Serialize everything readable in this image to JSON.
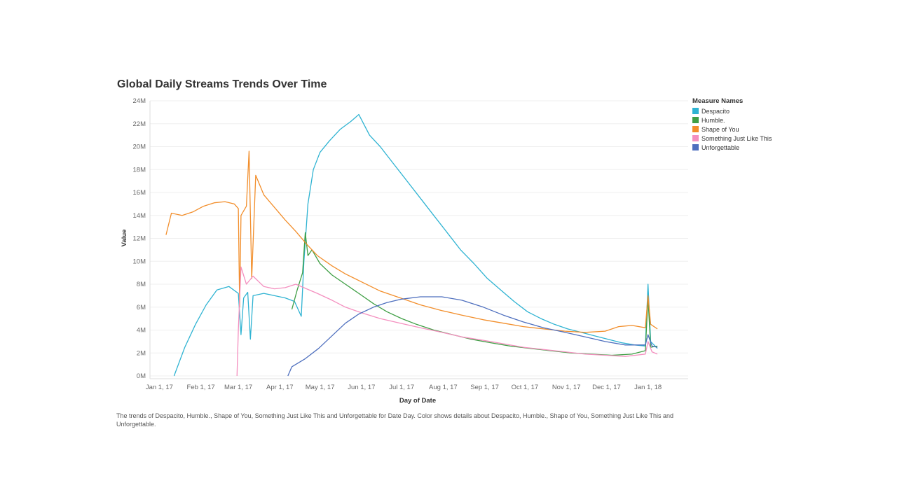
{
  "chart_data": {
    "type": "line",
    "title": "Global Daily Streams Trends Over Time",
    "xlabel": "Day of Date",
    "ylabel": "Value",
    "x_ticks": [
      "Jan 1, 17",
      "Feb 1, 17",
      "Mar 1, 17",
      "Apr 1, 17",
      "May 1, 17",
      "Jun 1, 17",
      "Jul 1, 17",
      "Aug 1, 17",
      "Sep 1, 17",
      "Oct 1, 17",
      "Nov 1, 17",
      "Dec 1, 17",
      "Jan 1, 18"
    ],
    "y_ticks": [
      "0M",
      "2M",
      "4M",
      "6M",
      "8M",
      "10M",
      "12M",
      "14M",
      "16M",
      "18M",
      "20M",
      "22M",
      "24M"
    ],
    "ylim": [
      0,
      24
    ],
    "xlim": [
      "2016-12-25",
      "2018-01-31"
    ],
    "legend_title": "Measure Names",
    "legend_position": "top-right",
    "grid": true,
    "series": [
      {
        "name": "Despacito",
        "color": "#2fb3d2",
        "points": [
          [
            "2017-01-12",
            0
          ],
          [
            "2017-01-20",
            2.5
          ],
          [
            "2017-01-28",
            4.5
          ],
          [
            "2017-02-05",
            6.2
          ],
          [
            "2017-02-13",
            7.5
          ],
          [
            "2017-02-22",
            7.8
          ],
          [
            "2017-03-01",
            7.2
          ],
          [
            "2017-03-03",
            3.6
          ],
          [
            "2017-03-05",
            6.8
          ],
          [
            "2017-03-08",
            7.3
          ],
          [
            "2017-03-10",
            3.2
          ],
          [
            "2017-03-12",
            7.0
          ],
          [
            "2017-03-20",
            7.2
          ],
          [
            "2017-03-28",
            7.0
          ],
          [
            "2017-04-05",
            6.8
          ],
          [
            "2017-04-12",
            6.5
          ],
          [
            "2017-04-17",
            5.2
          ],
          [
            "2017-04-19",
            10
          ],
          [
            "2017-04-22",
            15
          ],
          [
            "2017-04-26",
            18
          ],
          [
            "2017-05-01",
            19.5
          ],
          [
            "2017-05-08",
            20.5
          ],
          [
            "2017-05-16",
            21.5
          ],
          [
            "2017-05-24",
            22.2
          ],
          [
            "2017-05-30",
            22.8
          ],
          [
            "2017-06-07",
            21
          ],
          [
            "2017-06-15",
            20
          ],
          [
            "2017-06-25",
            18.5
          ],
          [
            "2017-07-05",
            17
          ],
          [
            "2017-07-15",
            15.5
          ],
          [
            "2017-07-25",
            14
          ],
          [
            "2017-08-04",
            12.5
          ],
          [
            "2017-08-14",
            11
          ],
          [
            "2017-08-24",
            9.8
          ],
          [
            "2017-09-03",
            8.5
          ],
          [
            "2017-09-13",
            7.5
          ],
          [
            "2017-09-23",
            6.5
          ],
          [
            "2017-10-03",
            5.6
          ],
          [
            "2017-10-13",
            5.0
          ],
          [
            "2017-10-23",
            4.5
          ],
          [
            "2017-11-02",
            4.1
          ],
          [
            "2017-11-12",
            3.8
          ],
          [
            "2017-11-22",
            3.5
          ],
          [
            "2017-12-02",
            3.2
          ],
          [
            "2017-12-12",
            2.9
          ],
          [
            "2017-12-22",
            2.7
          ],
          [
            "2017-12-30",
            2.6
          ],
          [
            "2018-01-01",
            8.0
          ],
          [
            "2018-01-03",
            3.0
          ],
          [
            "2018-01-08",
            2.4
          ]
        ]
      },
      {
        "name": "Humble.",
        "color": "#3f9f45",
        "points": [
          [
            "2017-04-10",
            5.8
          ],
          [
            "2017-04-14",
            7.5
          ],
          [
            "2017-04-18",
            9
          ],
          [
            "2017-04-20",
            12.5
          ],
          [
            "2017-04-22",
            10.5
          ],
          [
            "2017-04-25",
            11
          ],
          [
            "2017-05-01",
            9.8
          ],
          [
            "2017-05-10",
            8.8
          ],
          [
            "2017-05-20",
            8.0
          ],
          [
            "2017-05-30",
            7.2
          ],
          [
            "2017-06-10",
            6.3
          ],
          [
            "2017-06-20",
            5.6
          ],
          [
            "2017-07-01",
            5.0
          ],
          [
            "2017-07-12",
            4.5
          ],
          [
            "2017-07-25",
            4.0
          ],
          [
            "2017-08-08",
            3.6
          ],
          [
            "2017-08-22",
            3.2
          ],
          [
            "2017-09-05",
            2.9
          ],
          [
            "2017-09-20",
            2.6
          ],
          [
            "2017-10-05",
            2.4
          ],
          [
            "2017-10-20",
            2.2
          ],
          [
            "2017-11-05",
            2.0
          ],
          [
            "2017-11-20",
            1.9
          ],
          [
            "2017-12-05",
            1.8
          ],
          [
            "2017-12-20",
            1.9
          ],
          [
            "2017-12-30",
            2.2
          ],
          [
            "2018-01-01",
            6.8
          ],
          [
            "2018-01-03",
            2.5
          ],
          [
            "2018-01-08",
            2.6
          ]
        ]
      },
      {
        "name": "Shape of You",
        "color": "#f28e2b",
        "points": [
          [
            "2017-01-06",
            12.3
          ],
          [
            "2017-01-10",
            14.2
          ],
          [
            "2017-01-18",
            14.0
          ],
          [
            "2017-01-26",
            14.3
          ],
          [
            "2017-02-03",
            14.8
          ],
          [
            "2017-02-11",
            15.1
          ],
          [
            "2017-02-19",
            15.2
          ],
          [
            "2017-02-26",
            15.0
          ],
          [
            "2017-03-01",
            14.6
          ],
          [
            "2017-03-02",
            6.0
          ],
          [
            "2017-03-03",
            14.0
          ],
          [
            "2017-03-07",
            14.8
          ],
          [
            "2017-03-09",
            19.6
          ],
          [
            "2017-03-11",
            8.5
          ],
          [
            "2017-03-14",
            17.5
          ],
          [
            "2017-03-20",
            15.8
          ],
          [
            "2017-03-28",
            14.7
          ],
          [
            "2017-04-05",
            13.6
          ],
          [
            "2017-04-13",
            12.6
          ],
          [
            "2017-04-21",
            11.5
          ],
          [
            "2017-04-29",
            10.5
          ],
          [
            "2017-05-10",
            9.6
          ],
          [
            "2017-05-20",
            8.9
          ],
          [
            "2017-06-01",
            8.2
          ],
          [
            "2017-06-15",
            7.4
          ],
          [
            "2017-06-30",
            6.8
          ],
          [
            "2017-07-15",
            6.2
          ],
          [
            "2017-07-31",
            5.7
          ],
          [
            "2017-08-15",
            5.3
          ],
          [
            "2017-08-31",
            4.9
          ],
          [
            "2017-09-15",
            4.6
          ],
          [
            "2017-09-30",
            4.3
          ],
          [
            "2017-10-15",
            4.1
          ],
          [
            "2017-10-31",
            3.9
          ],
          [
            "2017-11-15",
            3.8
          ],
          [
            "2017-11-30",
            3.9
          ],
          [
            "2017-12-10",
            4.3
          ],
          [
            "2017-12-20",
            4.4
          ],
          [
            "2017-12-30",
            4.2
          ],
          [
            "2018-01-01",
            7.0
          ],
          [
            "2018-01-03",
            4.5
          ],
          [
            "2018-01-08",
            4.1
          ]
        ]
      },
      {
        "name": "Something Just Like This",
        "color": "#f48fbf",
        "points": [
          [
            "2017-02-28",
            0
          ],
          [
            "2017-03-01",
            4.0
          ],
          [
            "2017-03-03",
            9.5
          ],
          [
            "2017-03-07",
            8.0
          ],
          [
            "2017-03-12",
            8.7
          ],
          [
            "2017-03-20",
            7.8
          ],
          [
            "2017-03-28",
            7.6
          ],
          [
            "2017-04-05",
            7.7
          ],
          [
            "2017-04-13",
            8.0
          ],
          [
            "2017-04-21",
            7.6
          ],
          [
            "2017-04-29",
            7.2
          ],
          [
            "2017-05-10",
            6.6
          ],
          [
            "2017-05-20",
            6.0
          ],
          [
            "2017-06-01",
            5.5
          ],
          [
            "2017-06-15",
            5.0
          ],
          [
            "2017-06-30",
            4.6
          ],
          [
            "2017-07-15",
            4.2
          ],
          [
            "2017-07-31",
            3.8
          ],
          [
            "2017-08-15",
            3.4
          ],
          [
            "2017-08-31",
            3.1
          ],
          [
            "2017-09-15",
            2.8
          ],
          [
            "2017-09-30",
            2.5
          ],
          [
            "2017-10-15",
            2.3
          ],
          [
            "2017-10-31",
            2.1
          ],
          [
            "2017-11-15",
            1.9
          ],
          [
            "2017-11-30",
            1.8
          ],
          [
            "2017-12-15",
            1.7
          ],
          [
            "2017-12-30",
            1.9
          ],
          [
            "2018-01-01",
            3.0
          ],
          [
            "2018-01-04",
            2.1
          ],
          [
            "2018-01-08",
            1.9
          ]
        ]
      },
      {
        "name": "Unforgettable",
        "color": "#4e6fbe",
        "points": [
          [
            "2017-04-07",
            0
          ],
          [
            "2017-04-10",
            0.8
          ],
          [
            "2017-04-20",
            1.5
          ],
          [
            "2017-04-30",
            2.4
          ],
          [
            "2017-05-10",
            3.5
          ],
          [
            "2017-05-20",
            4.6
          ],
          [
            "2017-05-30",
            5.4
          ],
          [
            "2017-06-10",
            6.0
          ],
          [
            "2017-06-20",
            6.4
          ],
          [
            "2017-07-01",
            6.7
          ],
          [
            "2017-07-15",
            6.9
          ],
          [
            "2017-07-31",
            6.9
          ],
          [
            "2017-08-15",
            6.6
          ],
          [
            "2017-08-31",
            6.0
          ],
          [
            "2017-09-15",
            5.3
          ],
          [
            "2017-09-30",
            4.7
          ],
          [
            "2017-10-15",
            4.2
          ],
          [
            "2017-10-31",
            3.8
          ],
          [
            "2017-11-15",
            3.4
          ],
          [
            "2017-11-30",
            3.0
          ],
          [
            "2017-12-15",
            2.7
          ],
          [
            "2017-12-30",
            2.7
          ],
          [
            "2018-01-01",
            3.6
          ],
          [
            "2018-01-04",
            2.6
          ],
          [
            "2018-01-08",
            2.5
          ]
        ]
      }
    ]
  },
  "caption": "The trends of Despacito, Humble., Shape of You, Something Just Like This and Unforgettable for Date Day.  Color shows details about Despacito, Humble., Shape of You, Something Just Like This and Unforgettable."
}
